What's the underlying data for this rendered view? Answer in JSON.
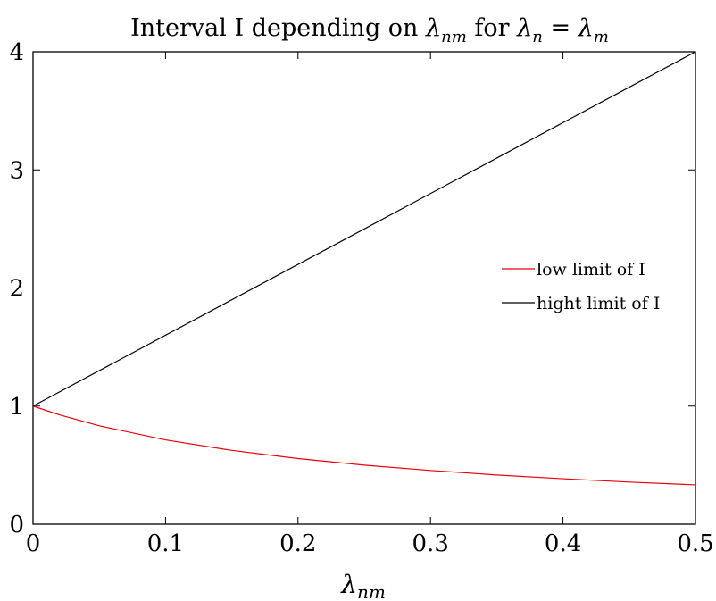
{
  "chart_data": {
    "type": "line",
    "title": {
      "prefix": "Interval I depending on ",
      "lambda_nm_sub": "nm",
      "mid": " for ",
      "lambda_n_sub": "n",
      "equals": " = ",
      "lambda_m_sub": "m"
    },
    "xlabel": {
      "symbol": "λ",
      "sub": "nm"
    },
    "ylabel": "",
    "xlim": [
      0,
      0.5
    ],
    "ylim": [
      0,
      4
    ],
    "x_ticks": [
      0,
      0.1,
      0.2,
      0.3,
      0.4,
      0.5
    ],
    "x_tick_labels": [
      "0",
      "0.1",
      "0.2",
      "0.3",
      "0.4",
      "0.5"
    ],
    "y_ticks": [
      0,
      1,
      2,
      3,
      4
    ],
    "y_tick_labels": [
      "0",
      "1",
      "2",
      "3",
      "4"
    ],
    "grid": false,
    "legend_position": "right",
    "series": [
      {
        "name": "low limit of I",
        "color": "#e8000b",
        "x": [
          0,
          0.02,
          0.05,
          0.1,
          0.15,
          0.2,
          0.25,
          0.3,
          0.35,
          0.4,
          0.45,
          0.5
        ],
        "y": [
          1.0,
          0.926,
          0.833,
          0.714,
          0.625,
          0.556,
          0.5,
          0.455,
          0.417,
          0.385,
          0.357,
          0.333
        ]
      },
      {
        "name": "hight limit of I",
        "color": "#000000",
        "x": [
          0,
          0.5
        ],
        "y": [
          1.0,
          4.0
        ]
      }
    ]
  }
}
